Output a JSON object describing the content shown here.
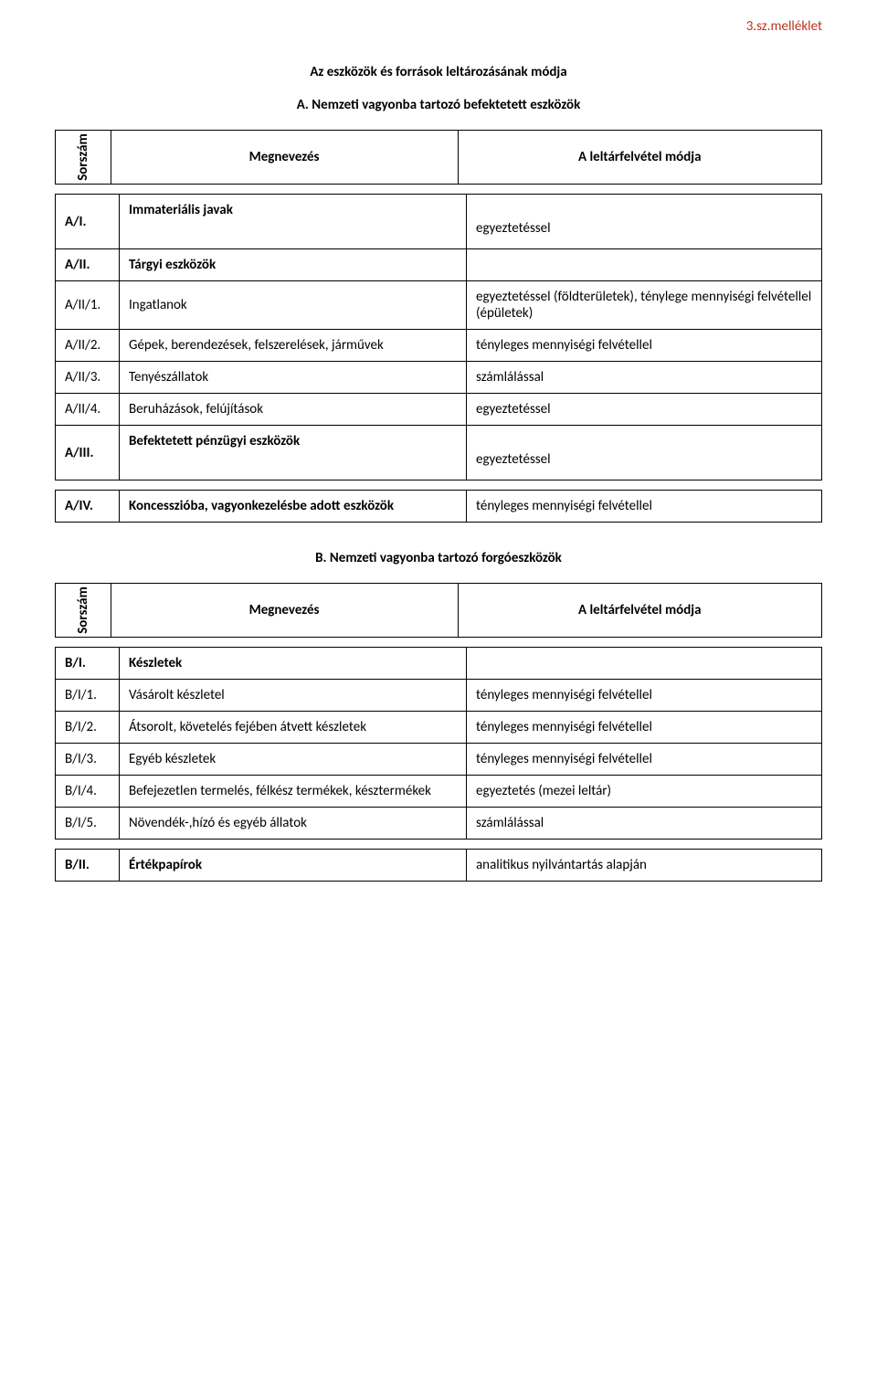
{
  "colors": {
    "text": "#000000",
    "accent": "#bd311e",
    "background": "#ffffff",
    "border": "#000000"
  },
  "typography": {
    "font_family": "Calibri",
    "base_fontsize_pt": 11
  },
  "attachment_label": "3.sz.melléklet",
  "doc_title": "Az eszközök és források leltározásának módja",
  "sectionA": {
    "title": "A. Nemzeti vagyonba tartozó befektetett eszközök",
    "header": {
      "sorszam": "Sorszám",
      "name": "Megnevezés",
      "mode": "A leltárfelvétel módja"
    },
    "rows": [
      {
        "id": "A/I.",
        "name": "Immateriális javak",
        "mode": "egyeztetéssel",
        "bold": true,
        "tall": true
      },
      {
        "id": "A/II.",
        "name": "Tárgyi eszközök",
        "mode": "",
        "bold": true
      },
      {
        "id": "A/II/1.",
        "name": "Ingatlanok",
        "mode": "egyeztetéssel (földterületek), ténylege mennyiségi felvétellel (épületek)",
        "bold": false
      },
      {
        "id": "A/II/2.",
        "name": "Gépek, berendezések, felszerelések, járművek",
        "mode": "tényleges mennyiségi felvétellel",
        "bold": false
      },
      {
        "id": "A/II/3.",
        "name": "Tenyészállatok",
        "mode": "számlálással",
        "bold": false
      },
      {
        "id": "A/II/4.",
        "name": "Beruházások, felújítások",
        "mode": "egyeztetéssel",
        "bold": false
      },
      {
        "id": "A/III.",
        "name": "Befektetett pénzügyi eszközök",
        "mode": "egyeztetéssel",
        "bold": true,
        "tall": true
      },
      {
        "id": "A/IV.",
        "name": "Koncesszióba, vagyonkezelésbe adott eszközök",
        "mode": "tényleges mennyiségi felvétellel",
        "bold": true,
        "tall": true
      }
    ]
  },
  "sectionB": {
    "title": "B. Nemzeti vagyonba tartozó forgóeszközök",
    "header": {
      "sorszam": "Sorszám",
      "name": "Megnevezés",
      "mode": "A leltárfelvétel módja"
    },
    "rows": [
      {
        "id": "B/I.",
        "name": "Készletek",
        "mode": "",
        "bold": true
      },
      {
        "id": "B/I/1.",
        "name": "Vásárolt készletel",
        "mode": "tényleges mennyiségi felvétellel",
        "bold": false
      },
      {
        "id": "B/I/2.",
        "name": "Átsorolt, követelés fejében átvett készletek",
        "mode": "tényleges mennyiségi felvétellel",
        "bold": false
      },
      {
        "id": "B/I/3.",
        "name": "Egyéb készletek",
        "mode": "tényleges mennyiségi felvétellel",
        "bold": false
      },
      {
        "id": "B/I/4.",
        "name": "Befejezetlen termelés, félkész termékek, késztermékek",
        "mode": "egyeztetés (mezei leltár)",
        "bold": false
      },
      {
        "id": "B/I/5.",
        "name": "Növendék-,hízó és egyéb állatok",
        "mode": "számlálással",
        "bold": false
      },
      {
        "id": "B/II.",
        "name": "Értékpapírok",
        "mode": "analitikus nyilvántartás alapján",
        "bold": true
      }
    ]
  }
}
